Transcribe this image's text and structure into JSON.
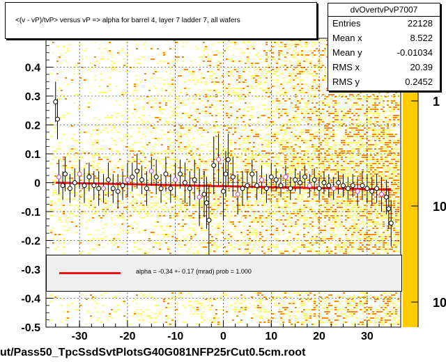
{
  "title": "<(v - vP)/tvP> versus   vP => alpha for barrel 4, layer 7 ladder 7, all wafers",
  "stats": {
    "name": "dvOvertvPvP7007",
    "rows": [
      {
        "label": "Entries",
        "value": "22128"
      },
      {
        "label": "Mean x",
        "value": "8.522"
      },
      {
        "label": "Mean y",
        "value": "-0.01034"
      },
      {
        "label": "RMS x",
        "value": "20.39"
      },
      {
        "label": "RMS y",
        "value": "0.2452"
      }
    ]
  },
  "legend": {
    "label": "alpha =   -0.34 +-  0.17 (mrad) prob = 1.000",
    "color": "#ee1111"
  },
  "footer": "ut/Pass50_TpcSsdSvtPlotsG40G081NFP25rCut0.5cm.root",
  "colors": {
    "background": "#ffffff",
    "fit": "#ee1111",
    "marker": "#000000",
    "marker_alt": "#cc44cc",
    "heat_low": "#ffff66",
    "heat_high": "#ff8800",
    "scale_bar": "#ffcc00"
  },
  "chart_data": {
    "type": "scatter",
    "xlim": [
      -37,
      37
    ],
    "ylim": [
      -0.5,
      0.5
    ],
    "x_ticks": [
      -30,
      -20,
      -10,
      0,
      10,
      20,
      30
    ],
    "y_ticks": [
      -0.5,
      -0.4,
      -0.3,
      -0.2,
      -0.1,
      0,
      0.1,
      0.2,
      0.3,
      0.4
    ],
    "x_tick_labels": [
      "-30",
      "-20",
      "-10",
      "0",
      "10",
      "20",
      "30"
    ],
    "y_tick_labels": [
      "-0.5",
      "-0.4",
      "-0.3",
      "-0.2",
      "-0.1",
      "0",
      "0.1",
      "0.2",
      "0.3",
      "0.4"
    ],
    "z_tick_labels": [
      "1",
      "10",
      "10"
    ],
    "grid": true,
    "fit_line": {
      "x": [
        -35,
        35
      ],
      "y": [
        0.0,
        -0.024
      ]
    },
    "points": [
      {
        "x": -35,
        "y": 0.28,
        "err": 0.07
      },
      {
        "x": -34.6,
        "y": 0.22,
        "err": 0.07
      },
      {
        "x": -34.3,
        "y": 0.02,
        "err": 0.06
      },
      {
        "x": -33.5,
        "y": -0.01,
        "err": 0.05
      },
      {
        "x": -33,
        "y": 0.03,
        "err": 0.06
      },
      {
        "x": -32,
        "y": -0.02,
        "err": 0.05
      },
      {
        "x": -31,
        "y": 0.0,
        "err": 0.05
      },
      {
        "x": -30,
        "y": 0.03,
        "err": 0.05
      },
      {
        "x": -29,
        "y": -0.01,
        "err": 0.06
      },
      {
        "x": -28,
        "y": 0.02,
        "err": 0.05
      },
      {
        "x": -27,
        "y": -0.01,
        "err": 0.05
      },
      {
        "x": -26,
        "y": -0.02,
        "err": 0.06
      },
      {
        "x": -25,
        "y": -0.02,
        "err": 0.05
      },
      {
        "x": -24,
        "y": 0.01,
        "err": 0.06
      },
      {
        "x": -23,
        "y": -0.02,
        "err": 0.05
      },
      {
        "x": -22,
        "y": -0.03,
        "err": 0.06
      },
      {
        "x": -21,
        "y": -0.01,
        "err": 0.05
      },
      {
        "x": -20,
        "y": 0.01,
        "err": 0.06
      },
      {
        "x": -19,
        "y": 0.02,
        "err": 0.05
      },
      {
        "x": -18,
        "y": 0.04,
        "err": 0.06
      },
      {
        "x": -17,
        "y": 0.01,
        "err": 0.05
      },
      {
        "x": -16,
        "y": -0.02,
        "err": 0.06
      },
      {
        "x": -15,
        "y": 0.04,
        "err": 0.05
      },
      {
        "x": -14,
        "y": 0.02,
        "err": 0.06
      },
      {
        "x": -13,
        "y": -0.02,
        "err": 0.05
      },
      {
        "x": -12,
        "y": 0.03,
        "err": 0.06
      },
      {
        "x": -11,
        "y": -0.02,
        "err": 0.05
      },
      {
        "x": -10,
        "y": 0.01,
        "err": 0.06
      },
      {
        "x": -9,
        "y": 0.03,
        "err": 0.05
      },
      {
        "x": -8,
        "y": 0.0,
        "err": 0.07
      },
      {
        "x": -7,
        "y": -0.02,
        "err": 0.06
      },
      {
        "x": -6,
        "y": 0.01,
        "err": 0.07
      },
      {
        "x": -5,
        "y": -0.05,
        "err": 0.1
      },
      {
        "x": -4,
        "y": -0.04,
        "err": 0.08
      },
      {
        "x": -3.5,
        "y": -0.07,
        "err": 0.09
      },
      {
        "x": -3,
        "y": -0.13,
        "err": 0.12
      },
      {
        "x": -2,
        "y": 0.06,
        "err": 0.1
      },
      {
        "x": -1,
        "y": 0.08,
        "err": 0.09
      },
      {
        "x": 0,
        "y": -0.03,
        "err": 0.1
      },
      {
        "x": 0.5,
        "y": 0.03,
        "err": 0.08
      },
      {
        "x": 1,
        "y": 0.08,
        "err": 0.09
      },
      {
        "x": 2,
        "y": 0.02,
        "err": 0.07
      },
      {
        "x": 3,
        "y": -0.04,
        "err": 0.07
      },
      {
        "x": 4,
        "y": -0.02,
        "err": 0.06
      },
      {
        "x": 5,
        "y": -0.01,
        "err": 0.05
      },
      {
        "x": 6,
        "y": 0.03,
        "err": 0.05
      },
      {
        "x": 7,
        "y": -0.01,
        "err": 0.05
      },
      {
        "x": 8,
        "y": 0.01,
        "err": 0.05
      },
      {
        "x": 9,
        "y": -0.02,
        "err": 0.05
      },
      {
        "x": 10,
        "y": 0.02,
        "err": 0.05
      },
      {
        "x": 11,
        "y": 0.01,
        "err": 0.04
      },
      {
        "x": 12,
        "y": -0.01,
        "err": 0.04
      },
      {
        "x": 13,
        "y": 0.02,
        "err": 0.04
      },
      {
        "x": 14,
        "y": -0.02,
        "err": 0.04
      },
      {
        "x": 15,
        "y": 0.01,
        "err": 0.04
      },
      {
        "x": 16,
        "y": 0.0,
        "err": 0.04
      },
      {
        "x": 17,
        "y": 0.02,
        "err": 0.04
      },
      {
        "x": 18,
        "y": -0.01,
        "err": 0.04
      },
      {
        "x": 19,
        "y": 0.01,
        "err": 0.04
      },
      {
        "x": 20,
        "y": -0.02,
        "err": 0.04
      },
      {
        "x": 21,
        "y": 0.0,
        "err": 0.04
      },
      {
        "x": 22,
        "y": -0.01,
        "err": 0.04
      },
      {
        "x": 23,
        "y": -0.02,
        "err": 0.04
      },
      {
        "x": 24,
        "y": 0.0,
        "err": 0.04
      },
      {
        "x": 25,
        "y": -0.01,
        "err": 0.04
      },
      {
        "x": 26,
        "y": -0.02,
        "err": 0.04
      },
      {
        "x": 27,
        "y": -0.01,
        "err": 0.04
      },
      {
        "x": 28,
        "y": -0.03,
        "err": 0.05
      },
      {
        "x": 29,
        "y": -0.01,
        "err": 0.05
      },
      {
        "x": 30,
        "y": -0.02,
        "err": 0.05
      },
      {
        "x": 31,
        "y": -0.03,
        "err": 0.05
      },
      {
        "x": 32,
        "y": -0.02,
        "err": 0.05
      },
      {
        "x": 33,
        "y": -0.04,
        "err": 0.06
      },
      {
        "x": 34,
        "y": -0.05,
        "err": 0.06
      },
      {
        "x": 34.5,
        "y": -0.09,
        "err": 0.07
      },
      {
        "x": 35,
        "y": -0.14,
        "err": 0.08
      }
    ]
  }
}
